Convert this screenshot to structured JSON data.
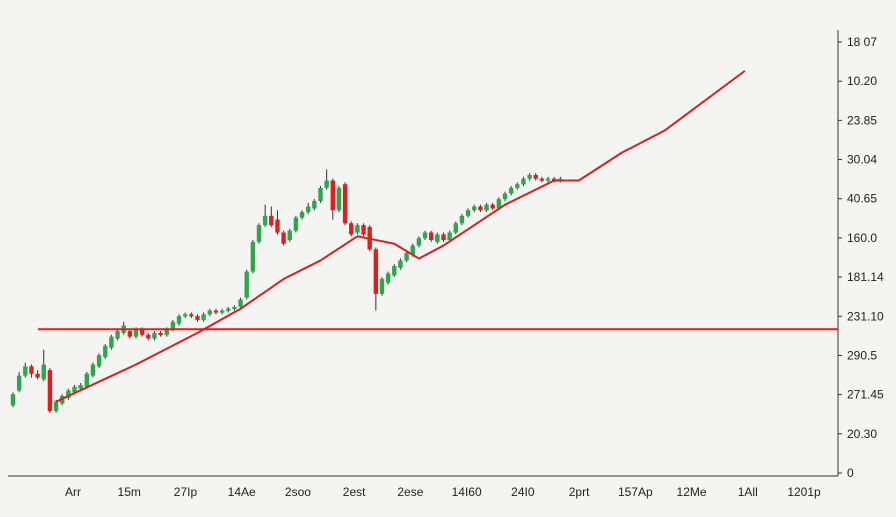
{
  "colors": {
    "background": "#f4f4f2",
    "up": "#2aa84a",
    "down": "#e11d1d",
    "line": "#e11d1d",
    "axis": "#333333"
  },
  "chart_data": {
    "type": "candlestick",
    "title": "",
    "x_tick_labels": [
      "Arr",
      "15m",
      "27Ip",
      "14Ae",
      "2soo",
      "2est",
      "2ese",
      "14I60",
      "24I0",
      "2prt",
      "157Ap",
      "12Me",
      "1All",
      "1201p"
    ],
    "y_tick_labels": [
      "18 07",
      "10.20",
      "23.85",
      "30.04",
      "40.65",
      "160.0",
      "181.14",
      "231.10",
      "290.5",
      "271.45",
      "20.30",
      "0"
    ],
    "ylim": [
      0,
      12
    ],
    "horizontal_line": {
      "value": 3.95,
      "color": "red"
    },
    "candles": [
      {
        "i": 0,
        "o": 1.9,
        "c": 2.2,
        "h": 2.25,
        "l": 1.85
      },
      {
        "i": 1,
        "o": 2.3,
        "c": 2.7,
        "h": 2.8,
        "l": 2.25
      },
      {
        "i": 2,
        "o": 2.7,
        "c": 2.95,
        "h": 3.05,
        "l": 2.65
      },
      {
        "i": 3,
        "o": 2.95,
        "c": 2.75,
        "h": 3.0,
        "l": 2.65
      },
      {
        "i": 4,
        "o": 2.75,
        "c": 2.65,
        "h": 2.85,
        "l": 2.6
      },
      {
        "i": 5,
        "o": 2.6,
        "c": 3.0,
        "h": 3.4,
        "l": 2.55
      },
      {
        "i": 6,
        "o": 2.85,
        "c": 1.75,
        "h": 2.9,
        "l": 1.7
      },
      {
        "i": 7,
        "o": 1.75,
        "c": 2.0,
        "h": 2.05,
        "l": 1.7
      },
      {
        "i": 8,
        "o": 1.95,
        "c": 2.15,
        "h": 2.2,
        "l": 1.9
      },
      {
        "i": 9,
        "o": 2.1,
        "c": 2.3,
        "h": 2.35,
        "l": 2.05
      },
      {
        "i": 10,
        "o": 2.25,
        "c": 2.4,
        "h": 2.45,
        "l": 2.2
      },
      {
        "i": 11,
        "o": 2.35,
        "c": 2.45,
        "h": 2.5,
        "l": 2.3
      },
      {
        "i": 12,
        "o": 2.4,
        "c": 2.75,
        "h": 2.8,
        "l": 2.35
      },
      {
        "i": 13,
        "o": 2.7,
        "c": 3.0,
        "h": 3.05,
        "l": 2.65
      },
      {
        "i": 14,
        "o": 2.95,
        "c": 3.25,
        "h": 3.3,
        "l": 2.9
      },
      {
        "i": 15,
        "o": 3.2,
        "c": 3.5,
        "h": 3.55,
        "l": 3.15
      },
      {
        "i": 16,
        "o": 3.45,
        "c": 3.75,
        "h": 3.8,
        "l": 3.4
      },
      {
        "i": 17,
        "o": 3.7,
        "c": 3.9,
        "h": 3.95,
        "l": 3.65
      },
      {
        "i": 18,
        "o": 3.85,
        "c": 4.05,
        "h": 4.15,
        "l": 3.8
      },
      {
        "i": 19,
        "o": 3.9,
        "c": 3.75,
        "h": 3.95,
        "l": 3.7
      },
      {
        "i": 20,
        "o": 3.75,
        "c": 3.95,
        "h": 4.0,
        "l": 3.7
      },
      {
        "i": 21,
        "o": 3.95,
        "c": 3.8,
        "h": 4.0,
        "l": 3.75
      },
      {
        "i": 22,
        "o": 3.8,
        "c": 3.7,
        "h": 3.85,
        "l": 3.65
      },
      {
        "i": 23,
        "o": 3.7,
        "c": 3.85,
        "h": 3.9,
        "l": 3.65
      },
      {
        "i": 24,
        "o": 3.85,
        "c": 3.8,
        "h": 3.9,
        "l": 3.75
      },
      {
        "i": 25,
        "o": 3.8,
        "c": 3.95,
        "h": 4.0,
        "l": 3.75
      },
      {
        "i": 26,
        "o": 3.95,
        "c": 4.15,
        "h": 4.2,
        "l": 3.9
      },
      {
        "i": 27,
        "o": 4.1,
        "c": 4.3,
        "h": 4.35,
        "l": 4.05
      },
      {
        "i": 28,
        "o": 4.3,
        "c": 4.35,
        "h": 4.4,
        "l": 4.25
      },
      {
        "i": 29,
        "o": 4.35,
        "c": 4.3,
        "h": 4.4,
        "l": 4.25
      },
      {
        "i": 30,
        "o": 4.3,
        "c": 4.2,
        "h": 4.35,
        "l": 4.15
      },
      {
        "i": 31,
        "o": 4.2,
        "c": 4.35,
        "h": 4.4,
        "l": 4.15
      },
      {
        "i": 32,
        "o": 4.35,
        "c": 4.45,
        "h": 4.5,
        "l": 4.3
      },
      {
        "i": 33,
        "o": 4.45,
        "c": 4.4,
        "h": 4.5,
        "l": 4.35
      },
      {
        "i": 34,
        "o": 4.4,
        "c": 4.45,
        "h": 4.5,
        "l": 4.35
      },
      {
        "i": 35,
        "o": 4.45,
        "c": 4.5,
        "h": 4.55,
        "l": 4.4
      },
      {
        "i": 36,
        "o": 4.5,
        "c": 4.55,
        "h": 4.6,
        "l": 4.45
      },
      {
        "i": 37,
        "o": 4.55,
        "c": 4.75,
        "h": 4.8,
        "l": 4.5
      },
      {
        "i": 38,
        "o": 4.8,
        "c": 5.5,
        "h": 5.55,
        "l": 4.75
      },
      {
        "i": 39,
        "o": 5.5,
        "c": 6.3,
        "h": 6.35,
        "l": 5.45
      },
      {
        "i": 40,
        "o": 6.3,
        "c": 6.75,
        "h": 6.8,
        "l": 6.25
      },
      {
        "i": 41,
        "o": 6.75,
        "c": 7.0,
        "h": 7.3,
        "l": 6.7
      },
      {
        "i": 42,
        "o": 7.0,
        "c": 6.75,
        "h": 7.25,
        "l": 6.7
      },
      {
        "i": 43,
        "o": 6.9,
        "c": 6.55,
        "h": 7.15,
        "l": 6.5
      },
      {
        "i": 44,
        "o": 6.55,
        "c": 6.25,
        "h": 6.6,
        "l": 6.2
      },
      {
        "i": 45,
        "o": 6.35,
        "c": 6.6,
        "h": 6.65,
        "l": 6.3
      },
      {
        "i": 46,
        "o": 6.6,
        "c": 6.95,
        "h": 7.0,
        "l": 6.55
      },
      {
        "i": 47,
        "o": 6.95,
        "c": 7.1,
        "h": 7.15,
        "l": 6.9
      },
      {
        "i": 48,
        "o": 7.1,
        "c": 7.25,
        "h": 7.35,
        "l": 7.05
      },
      {
        "i": 49,
        "o": 7.2,
        "c": 7.4,
        "h": 7.45,
        "l": 7.15
      },
      {
        "i": 50,
        "o": 7.4,
        "c": 7.75,
        "h": 7.8,
        "l": 7.35
      },
      {
        "i": 51,
        "o": 7.75,
        "c": 7.95,
        "h": 8.25,
        "l": 7.7
      },
      {
        "i": 52,
        "o": 7.95,
        "c": 7.15,
        "h": 8.0,
        "l": 6.9
      },
      {
        "i": 53,
        "o": 7.15,
        "c": 7.75,
        "h": 7.8,
        "l": 7.1
      },
      {
        "i": 54,
        "o": 7.85,
        "c": 6.8,
        "h": 7.9,
        "l": 6.75
      },
      {
        "i": 55,
        "o": 6.8,
        "c": 6.5,
        "h": 6.85,
        "l": 6.45
      },
      {
        "i": 56,
        "o": 6.55,
        "c": 6.75,
        "h": 6.8,
        "l": 6.5
      },
      {
        "i": 57,
        "o": 6.75,
        "c": 6.5,
        "h": 6.8,
        "l": 6.45
      },
      {
        "i": 58,
        "o": 6.7,
        "c": 6.1,
        "h": 6.75,
        "l": 6.05
      },
      {
        "i": 59,
        "o": 6.1,
        "c": 4.9,
        "h": 6.15,
        "l": 4.45
      },
      {
        "i": 60,
        "o": 4.9,
        "c": 5.3,
        "h": 5.35,
        "l": 4.85
      },
      {
        "i": 61,
        "o": 5.2,
        "c": 5.45,
        "h": 5.5,
        "l": 5.15
      },
      {
        "i": 62,
        "o": 5.4,
        "c": 5.65,
        "h": 5.7,
        "l": 5.35
      },
      {
        "i": 63,
        "o": 5.6,
        "c": 5.8,
        "h": 5.85,
        "l": 5.55
      },
      {
        "i": 64,
        "o": 5.8,
        "c": 6.0,
        "h": 6.05,
        "l": 5.75
      },
      {
        "i": 65,
        "o": 5.95,
        "c": 6.2,
        "h": 6.25,
        "l": 5.9
      },
      {
        "i": 66,
        "o": 6.2,
        "c": 6.4,
        "h": 6.45,
        "l": 6.15
      },
      {
        "i": 67,
        "o": 6.4,
        "c": 6.55,
        "h": 6.6,
        "l": 6.35
      },
      {
        "i": 68,
        "o": 6.55,
        "c": 6.35,
        "h": 6.6,
        "l": 6.3
      },
      {
        "i": 69,
        "o": 6.3,
        "c": 6.5,
        "h": 6.55,
        "l": 6.25
      },
      {
        "i": 70,
        "o": 6.5,
        "c": 6.35,
        "h": 6.55,
        "l": 6.3
      },
      {
        "i": 71,
        "o": 6.35,
        "c": 6.55,
        "h": 6.6,
        "l": 6.3
      },
      {
        "i": 72,
        "o": 6.55,
        "c": 6.8,
        "h": 6.85,
        "l": 6.5
      },
      {
        "i": 73,
        "o": 6.8,
        "c": 7.0,
        "h": 7.05,
        "l": 6.75
      },
      {
        "i": 74,
        "o": 7.0,
        "c": 7.15,
        "h": 7.2,
        "l": 6.95
      },
      {
        "i": 75,
        "o": 7.15,
        "c": 7.25,
        "h": 7.3,
        "l": 7.1
      },
      {
        "i": 76,
        "o": 7.25,
        "c": 7.15,
        "h": 7.3,
        "l": 7.1
      },
      {
        "i": 77,
        "o": 7.15,
        "c": 7.3,
        "h": 7.35,
        "l": 7.1
      },
      {
        "i": 78,
        "o": 7.3,
        "c": 7.2,
        "h": 7.35,
        "l": 7.15
      },
      {
        "i": 79,
        "o": 7.2,
        "c": 7.45,
        "h": 7.5,
        "l": 7.15
      },
      {
        "i": 80,
        "o": 7.45,
        "c": 7.6,
        "h": 7.65,
        "l": 7.4
      },
      {
        "i": 81,
        "o": 7.6,
        "c": 7.75,
        "h": 7.8,
        "l": 7.55
      },
      {
        "i": 82,
        "o": 7.75,
        "c": 7.85,
        "h": 7.9,
        "l": 7.7
      },
      {
        "i": 83,
        "o": 7.85,
        "c": 8.0,
        "h": 8.05,
        "l": 7.8
      },
      {
        "i": 84,
        "o": 8.0,
        "c": 8.1,
        "h": 8.15,
        "l": 7.95
      },
      {
        "i": 85,
        "o": 8.1,
        "c": 8.0,
        "h": 8.15,
        "l": 7.95
      },
      {
        "i": 86,
        "o": 8.0,
        "c": 7.95,
        "h": 8.05,
        "l": 7.9
      },
      {
        "i": 87,
        "o": 7.95,
        "c": 8.0,
        "h": 8.05,
        "l": 7.9
      },
      {
        "i": 88,
        "o": 8.0,
        "c": 7.95,
        "h": 8.05,
        "l": 7.9
      },
      {
        "i": 89,
        "o": 7.95,
        "c": 8.0,
        "h": 8.05,
        "l": 7.9
      }
    ],
    "trend_line": [
      {
        "i": 7,
        "y": 2.0
      },
      {
        "i": 20,
        "y": 3.0
      },
      {
        "i": 30,
        "y": 3.85
      },
      {
        "i": 37,
        "y": 4.5
      },
      {
        "i": 44,
        "y": 5.3
      },
      {
        "i": 50,
        "y": 5.8
      },
      {
        "i": 56,
        "y": 6.45
      },
      {
        "i": 62,
        "y": 6.25
      },
      {
        "i": 66,
        "y": 5.85
      },
      {
        "i": 70,
        "y": 6.2
      },
      {
        "i": 80,
        "y": 7.3
      },
      {
        "i": 88,
        "y": 7.95
      },
      {
        "i": 92,
        "y": 7.95
      },
      {
        "i": 99,
        "y": 8.7
      },
      {
        "i": 106,
        "y": 9.3
      },
      {
        "i": 119,
        "y": 10.9
      }
    ]
  }
}
